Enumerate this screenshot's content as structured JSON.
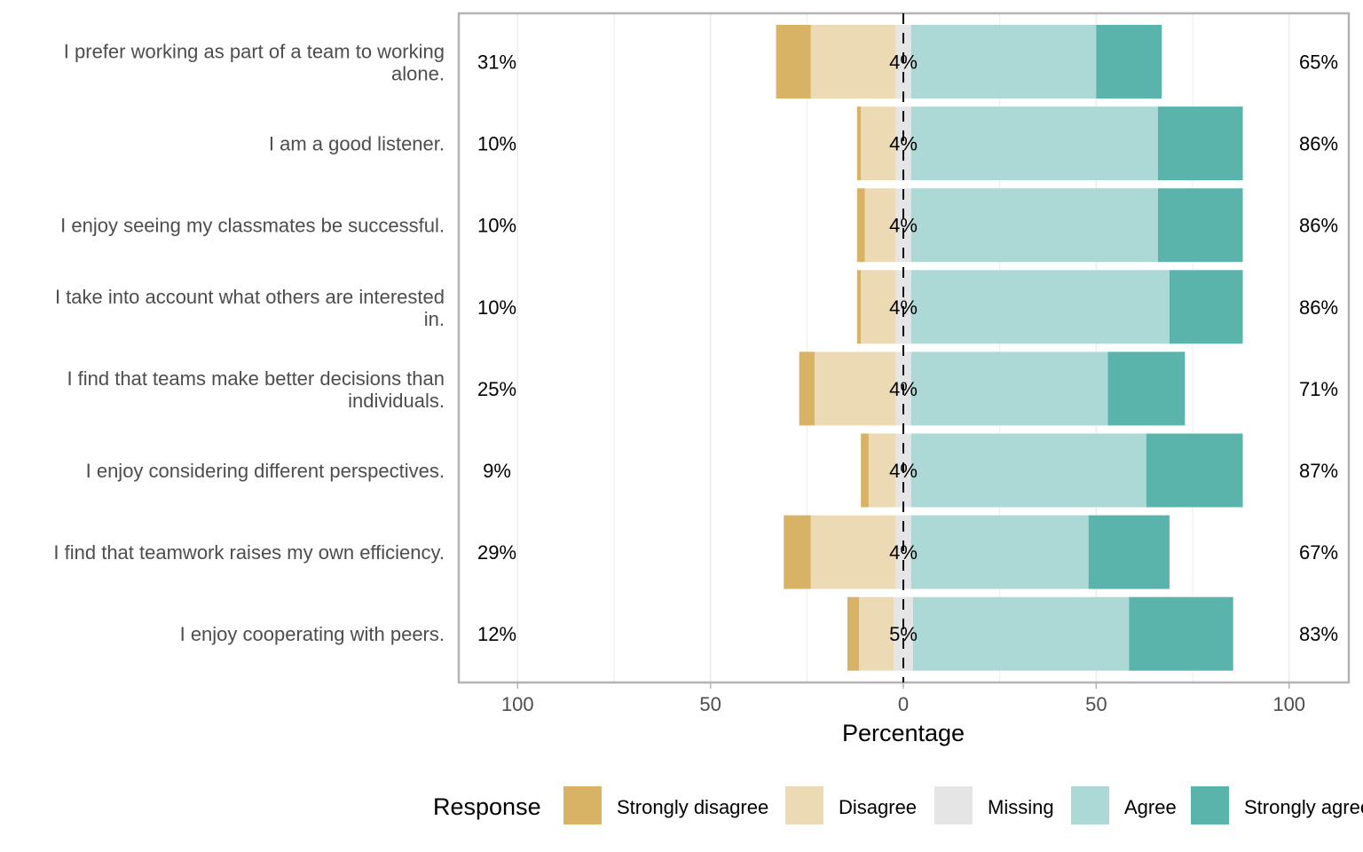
{
  "chart_data": {
    "type": "bar",
    "orientation": "horizontal",
    "stacked": "diverging",
    "xlabel": "Percentage",
    "x_tick_labels": [
      "100",
      "50",
      "0",
      "50",
      "100"
    ],
    "x_tick_values": [
      -100,
      -50,
      0,
      50,
      100
    ],
    "xlim": [
      -100,
      100
    ],
    "legend": {
      "title": "Response",
      "position": "bottom",
      "entries": [
        {
          "label": "Strongly disagree",
          "color": "#d8b365"
        },
        {
          "label": "Disagree",
          "color": "#ecdab4"
        },
        {
          "label": "Missing",
          "color": "#e5e5e5"
        },
        {
          "label": "Agree",
          "color": "#acd9d5"
        },
        {
          "label": "Strongly agree",
          "color": "#5ab4ac"
        }
      ]
    },
    "categories": [
      "I prefer working as part of a team to working alone.",
      "I am a good listener.",
      "I enjoy seeing my classmates be successful.",
      "I take into account what others are interested in.",
      "I find that teams make better decisions than individuals.",
      "I enjoy considering different perspectives.",
      "I find that teamwork raises my own efficiency.",
      "I enjoy cooperating with peers."
    ],
    "category_display_lines": [
      [
        "I prefer working as part of a team to working",
        "alone."
      ],
      [
        "I am a good listener."
      ],
      [
        "I enjoy seeing my classmates be successful."
      ],
      [
        "I take into account what others are interested",
        "in."
      ],
      [
        "I find that teams make better decisions than",
        "individuals."
      ],
      [
        "I enjoy considering different perspectives."
      ],
      [
        "I find that teamwork raises my own efficiency."
      ],
      [
        "I enjoy cooperating with peers."
      ]
    ],
    "series": [
      {
        "name": "Strongly disagree",
        "values": [
          9,
          1,
          2,
          1,
          4,
          2,
          7,
          3
        ]
      },
      {
        "name": "Disagree",
        "values": [
          22,
          9,
          8,
          9,
          21,
          7,
          22,
          9
        ]
      },
      {
        "name": "Missing",
        "values": [
          4,
          4,
          4,
          4,
          4,
          4,
          4,
          5
        ]
      },
      {
        "name": "Agree",
        "values": [
          48,
          64,
          64,
          67,
          51,
          61,
          46,
          56
        ]
      },
      {
        "name": "Strongly agree",
        "values": [
          17,
          22,
          22,
          19,
          20,
          25,
          21,
          27
        ]
      }
    ],
    "left_labels": [
      "31%",
      "10%",
      "10%",
      "10%",
      "25%",
      "9%",
      "29%",
      "12%"
    ],
    "center_labels": [
      "4%",
      "4%",
      "4%",
      "4%",
      "4%",
      "4%",
      "4%",
      "5%"
    ],
    "right_labels": [
      "65%",
      "86%",
      "86%",
      "86%",
      "71%",
      "87%",
      "67%",
      "83%"
    ],
    "grid": true,
    "zero_line": "dashed"
  }
}
